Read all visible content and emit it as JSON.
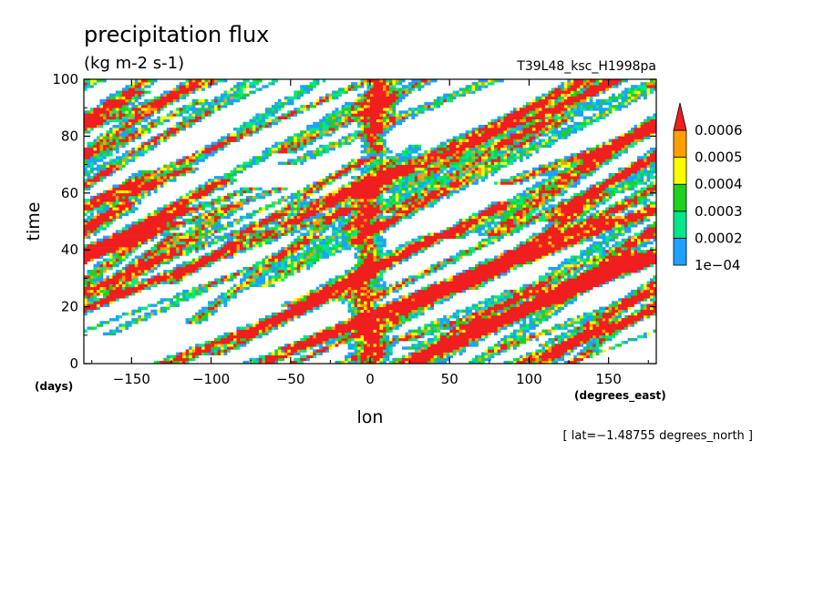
{
  "chart_data": {
    "type": "heatmap",
    "title": "precipitation flux",
    "subtitle": "(kg m-2 s-1)",
    "run_id": "T39L48_ksc_H1998pa",
    "xlabel": "lon",
    "x_unit": "(degrees_east)",
    "ylabel": "time",
    "y_unit": "(days)",
    "xlim": [
      -180,
      180
    ],
    "ylim": [
      0,
      100
    ],
    "x_ticks": [
      -150,
      -100,
      -50,
      0,
      50,
      100,
      150
    ],
    "x_tick_labels": [
      "−150",
      "−100",
      "−50",
      "0",
      "50",
      "100",
      "150"
    ],
    "y_ticks": [
      0,
      20,
      40,
      60,
      80,
      100
    ],
    "y_tick_labels": [
      "0",
      "20",
      "40",
      "60",
      "80",
      "100"
    ],
    "slice_note": "[ lat=−1.48755 degrees_north ]",
    "color_levels": [
      0.0001,
      0.0002,
      0.0003,
      0.0004,
      0.0005,
      0.0006
    ],
    "colorbar_labels": [
      "1e−04",
      "0.0002",
      "0.0003",
      "0.0004",
      "0.0005",
      "0.0006"
    ],
    "colorbar_extend": "max",
    "colors": [
      "#1ea0ff",
      "#00e68c",
      "#1ed21e",
      "#ffff00",
      "#ffa000",
      "#f01e1e"
    ],
    "background_color": "#ffffff",
    "grid": false,
    "features": {
      "stationary_band": {
        "description": "intense near-stationary convective band",
        "lon_center": 0,
        "peak_intensity_lons": [
          -5,
          0,
          5
        ]
      },
      "eastward_streaks": {
        "description": "eastward propagating diagonal streaks",
        "direction": "eastward with time"
      }
    }
  }
}
